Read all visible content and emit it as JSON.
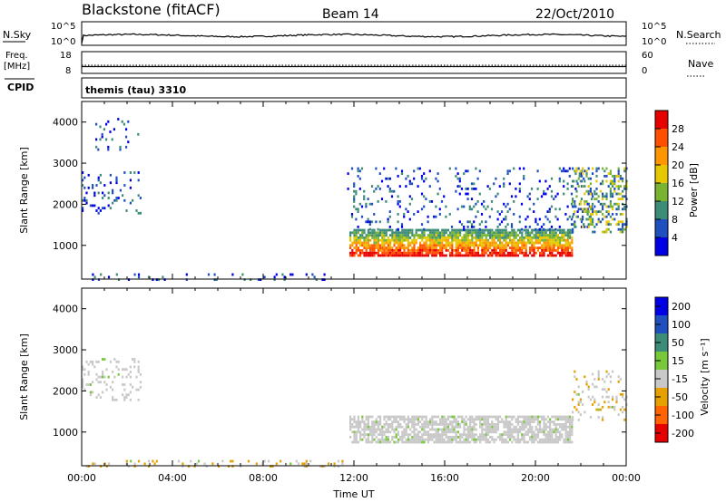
{
  "header": {
    "station": "Blackstone (fitACF)",
    "beam": "Beam 14",
    "date": "22/Oct/2010"
  },
  "noise_panel": {
    "left_label": "N.Sky",
    "right_label": "N.Search",
    "left_ticks": [
      "10^5",
      "10^0"
    ],
    "right_ticks": [
      "10^5",
      "10^0"
    ]
  },
  "freq_panel": {
    "left_label_line1": "Freq.",
    "left_label_line2": "[MHz]",
    "right_label": "Nave",
    "left_ticks": [
      "18",
      "8"
    ],
    "right_ticks": [
      "60",
      "0"
    ]
  },
  "cpid_panel": {
    "label": "CPID",
    "text": "themis (tau) 3310"
  },
  "x_axis": {
    "label": "Time UT",
    "ticks": [
      "00:00",
      "04:00",
      "08:00",
      "12:00",
      "16:00",
      "20:00",
      "00:00"
    ],
    "range_hours": [
      0,
      24
    ]
  },
  "power_panel": {
    "ylabel": "Slant Range [km]",
    "yticks": [
      "1000",
      "2000",
      "3000",
      "4000"
    ],
    "ylim_km": [
      180,
      4500
    ],
    "colorbar_label": "Power [dB]",
    "colorbar_ticks": [
      "4",
      "8",
      "12",
      "16",
      "20",
      "24",
      "28"
    ],
    "colorbar_range": [
      0,
      31.5
    ]
  },
  "velocity_panel": {
    "ylabel": "Slant Range [km]",
    "yticks": [
      "1000",
      "2000",
      "3000",
      "4000"
    ],
    "ylim_km": [
      180,
      4500
    ],
    "colorbar_label": "Velocity [m s⁻¹]",
    "colorbar_ticks": [
      "200",
      "100",
      "50",
      "15",
      "-15",
      "-50",
      "-100",
      "-200"
    ]
  },
  "colors": {
    "power_scale": [
      "#0000e6",
      "#2050c0",
      "#3c8c78",
      "#78b432",
      "#e6c800",
      "#ff9600",
      "#ff5000",
      "#e60000"
    ],
    "velocity_scale": [
      "#0000e6",
      "#2050c0",
      "#3c8c78",
      "#78c83c",
      "#c8c8c8",
      "#e6a000",
      "#ff6400",
      "#e60000"
    ]
  },
  "chart_data": {
    "type": "heatmap",
    "x_unit": "hours UT",
    "y_unit": "km",
    "power_regions": [
      {
        "name": "near-range band",
        "t": [
          0.1,
          11.8
        ],
        "r": [
          190,
          320
        ],
        "level": "low"
      },
      {
        "name": "early echoes",
        "t": [
          0.0,
          2.6
        ],
        "r": [
          1800,
          2800
        ],
        "level": "low"
      },
      {
        "name": "early high-range patches",
        "t": [
          0.6,
          2.5
        ],
        "r": [
          3300,
          4100
        ],
        "level": "low"
      },
      {
        "name": "main band",
        "t": [
          11.8,
          21.6
        ],
        "r": [
          750,
          1400
        ],
        "level": "high"
      },
      {
        "name": "scatter above main band",
        "t": [
          11.7,
          22.5
        ],
        "r": [
          1400,
          2900
        ],
        "level": "low"
      },
      {
        "name": "late echoes",
        "t": [
          21.6,
          24.0
        ],
        "r": [
          1300,
          2900
        ],
        "level": "mid"
      }
    ],
    "velocity_regions": [
      {
        "name": "near-range band",
        "t": [
          0.1,
          11.8
        ],
        "r": [
          190,
          320
        ],
        "velocity": "-50 to -15"
      },
      {
        "name": "early echoes",
        "t": [
          0.0,
          2.6
        ],
        "r": [
          1800,
          2800
        ],
        "velocity": "-15 to 15"
      },
      {
        "name": "main band",
        "t": [
          11.8,
          21.6
        ],
        "r": [
          750,
          1400
        ],
        "velocity": "-15 to 15"
      },
      {
        "name": "late echoes",
        "t": [
          21.6,
          24.0
        ],
        "r": [
          1300,
          2500
        ],
        "velocity": "-50 to 15"
      }
    ]
  }
}
